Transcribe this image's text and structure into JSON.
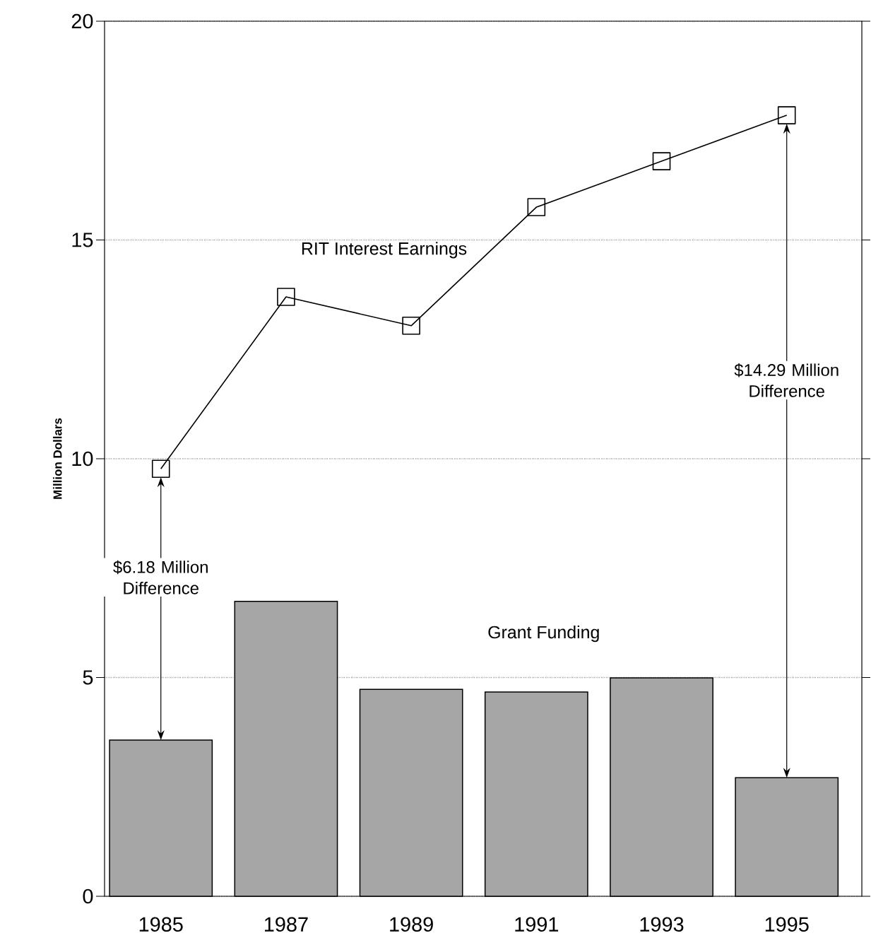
{
  "chart_data": {
    "type": "bar",
    "ylabel": "Million Dollars",
    "categories": [
      "1985",
      "1987",
      "1989",
      "1991",
      "1993",
      "1995"
    ],
    "series": [
      {
        "name": "Grant Funding",
        "color": "#a6a6a6",
        "values": [
          3.57,
          6.74,
          4.73,
          4.67,
          4.99,
          2.71
        ]
      },
      {
        "name": "RIT Interest Earnings",
        "type": "line",
        "color": "#000000",
        "values": [
          9.77,
          13.7,
          13.04,
          15.75,
          16.8,
          17.85
        ]
      }
    ],
    "annotations": [
      "$6.18 Million Difference",
      "$14.29 Million Difference"
    ],
    "ylim": [
      0,
      20
    ],
    "yticks": [
      0,
      5,
      10,
      15,
      20
    ],
    "grid": "y",
    "marker": "square",
    "line_style": "solid"
  }
}
